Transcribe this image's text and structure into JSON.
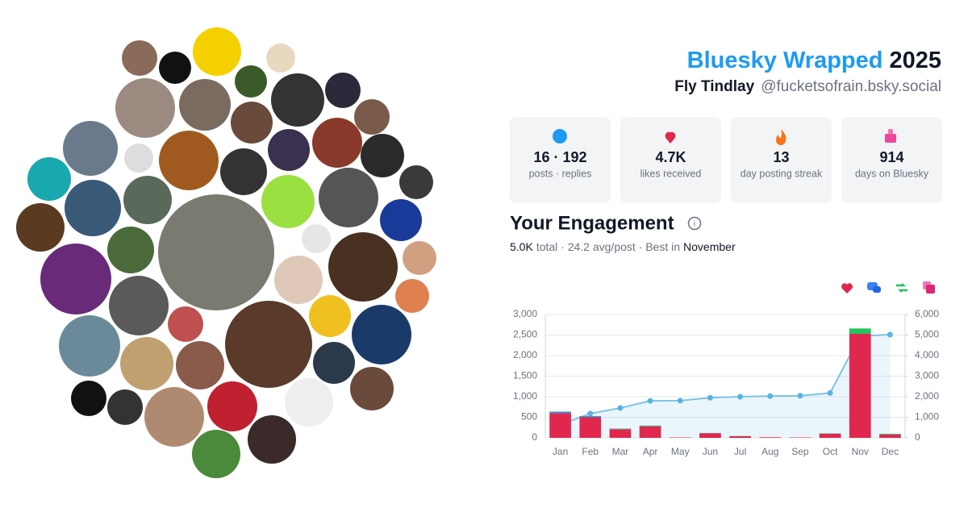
{
  "header": {
    "title": "Bluesky Wrapped",
    "year": "2025",
    "name": "Fly Tindlay",
    "handle": "@fucketsofrain.bsky.social"
  },
  "stats": [
    {
      "value": "16 · 192",
      "label": "posts · replies"
    },
    {
      "value": "4.7K",
      "label": "likes received"
    },
    {
      "value": "13",
      "label": "day posting streak"
    },
    {
      "value": "914",
      "label": "days on Bluesky"
    }
  ],
  "engagement": {
    "title": "Your Engagement",
    "total": "5.0K",
    "summary": "total · 24.2 avg/post · Best in",
    "best_month": "November"
  },
  "chart_data": {
    "type": "bar",
    "categories": [
      "Jan",
      "Feb",
      "Mar",
      "Apr",
      "May",
      "Jun",
      "Jul",
      "Aug",
      "Sep",
      "Oct",
      "Nov",
      "Dec"
    ],
    "series": [
      {
        "color": "#e0284f",
        "values": [
          600,
          500,
          210,
          280,
          10,
          110,
          40,
          15,
          10,
          100,
          2530,
          80
        ]
      },
      {
        "color": "#3b82f6",
        "values": [
          30,
          20,
          5,
          5,
          0,
          5,
          0,
          0,
          0,
          5,
          0,
          5
        ]
      },
      {
        "color": "#22c55e",
        "values": [
          10,
          10,
          10,
          15,
          0,
          5,
          5,
          0,
          0,
          5,
          130,
          15
        ]
      },
      {
        "color": "#7cc4e8",
        "axis": "y2",
        "type": "line",
        "values": [
          650,
          1180,
          1450,
          1800,
          1810,
          1950,
          2000,
          2030,
          2050,
          2180,
          4950,
          5020
        ]
      }
    ],
    "ylim": [
      0,
      3000
    ],
    "yticks": [
      0,
      500,
      {
        "value": 1000,
        "label": "1,000"
      },
      {
        "value": 1500,
        "label": "1,500"
      },
      {
        "value": 2000,
        "label": "2,000"
      },
      {
        "value": 2500,
        "label": "2,500"
      },
      {
        "value": 3000,
        "label": "3,000"
      }
    ],
    "y2lim": [
      0,
      6000
    ],
    "y2ticks": [
      0,
      {
        "value": 1000,
        "label": "1,000"
      },
      {
        "value": 2000,
        "label": "2,000"
      },
      {
        "value": 3000,
        "label": "3,000"
      },
      {
        "value": 4000,
        "label": "4,000"
      },
      {
        "value": 5000,
        "label": "5,000"
      },
      {
        "value": 6000,
        "label": "6,000"
      }
    ],
    "grid": true
  }
}
